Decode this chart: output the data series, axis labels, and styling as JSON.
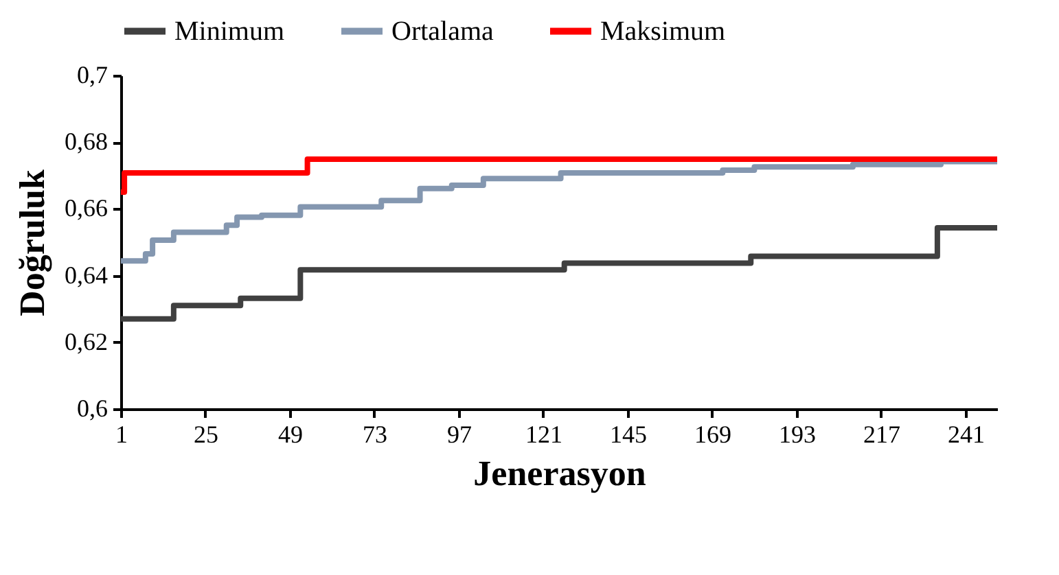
{
  "chart_data": {
    "type": "step",
    "xlabel": "Jenerasyon",
    "ylabel": "Doğruluk",
    "legend": "top",
    "xlim": [
      1,
      250
    ],
    "xticks": [
      1,
      25,
      49,
      73,
      97,
      121,
      145,
      169,
      193,
      217,
      241
    ],
    "ylim": [
      0.6,
      0.7
    ],
    "yticks": [
      {
        "value": 0.6,
        "label": "0,6"
      },
      {
        "value": 0.62,
        "label": "0,62"
      },
      {
        "value": 0.64,
        "label": "0,64"
      },
      {
        "value": 0.66,
        "label": "0,66"
      },
      {
        "value": 0.68,
        "label": "0,68"
      },
      {
        "value": 0.7,
        "label": "0,7"
      }
    ],
    "series": [
      {
        "name": "Minimum",
        "color": "#404040",
        "x": [
          1,
          16,
          35,
          52,
          127,
          180,
          233,
          250
        ],
        "values": [
          0.627,
          0.631,
          0.6332,
          0.6417,
          0.6437,
          0.6458,
          0.6543,
          0.6543
        ]
      },
      {
        "name": "Ortalama",
        "color": "#8497b0",
        "x": [
          1,
          8,
          10,
          16,
          31,
          34,
          41,
          52,
          75,
          86,
          95,
          104,
          126,
          172,
          181,
          209,
          234,
          250
        ],
        "values": [
          0.6444,
          0.6465,
          0.6506,
          0.653,
          0.6551,
          0.6575,
          0.6581,
          0.6606,
          0.6625,
          0.6661,
          0.6671,
          0.6691,
          0.6708,
          0.6716,
          0.6726,
          0.6733,
          0.6742,
          0.6742
        ]
      },
      {
        "name": "Maksimum",
        "color": "#ff0000",
        "x": [
          1,
          2,
          54,
          250
        ],
        "values": [
          0.665,
          0.6708,
          0.6749,
          0.6749
        ]
      }
    ]
  }
}
